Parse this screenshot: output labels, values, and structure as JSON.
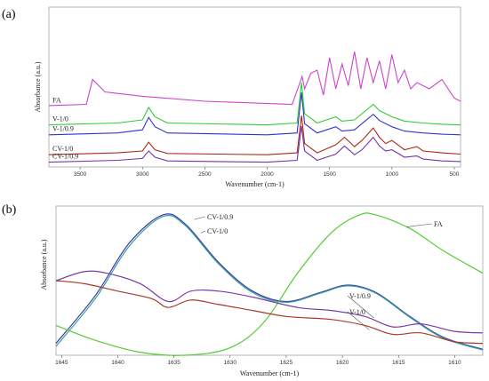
{
  "colors": {
    "FA": "#cc44cc",
    "V-1/0": "#33cc33",
    "V-1/0.9": "#3333cc",
    "CV-1/0": "#aa2a1a",
    "CV-1/0.9": "#7733aa",
    "b_CV-1/0.9": "#3a3aaa",
    "b_CV-1/0": "#3aa0a0",
    "b_FA": "#55cc33",
    "b_V-1/0.9": "#7a3aaa",
    "b_V-1/0": "#aa3a2a"
  },
  "chart_data": [
    {
      "panel": "(a)",
      "type": "line",
      "xlabel": "Wavenumber (cm-1)",
      "ylabel": "Absorbance (a.u.)",
      "xlim": [
        3750,
        450
      ],
      "xticks": [
        3500,
        3000,
        2500,
        2000,
        1500,
        1000,
        500
      ],
      "series": [
        {
          "name": "FA",
          "offset": 0.9,
          "points": [
            [
              3750,
              0.03
            ],
            [
              3450,
              0.05
            ],
            [
              3400,
              0.45
            ],
            [
              3300,
              0.25
            ],
            [
              3000,
              0.18
            ],
            [
              2500,
              0.1
            ],
            [
              1800,
              0.05
            ],
            [
              1720,
              0.5
            ],
            [
              1700,
              0.3
            ],
            [
              1650,
              0.55
            ],
            [
              1600,
              0.6
            ],
            [
              1550,
              0.2
            ],
            [
              1500,
              0.8
            ],
            [
              1450,
              0.3
            ],
            [
              1400,
              0.7
            ],
            [
              1350,
              0.35
            ],
            [
              1300,
              0.9
            ],
            [
              1250,
              0.3
            ],
            [
              1200,
              0.8
            ],
            [
              1150,
              0.4
            ],
            [
              1100,
              0.75
            ],
            [
              1050,
              0.3
            ],
            [
              1000,
              0.85
            ],
            [
              950,
              0.4
            ],
            [
              900,
              0.6
            ],
            [
              850,
              0.3
            ],
            [
              800,
              0.4
            ],
            [
              700,
              0.3
            ],
            [
              600,
              0.45
            ],
            [
              500,
              0.15
            ],
            [
              450,
              0.1
            ]
          ]
        },
        {
          "name": "V-1/0",
          "offset": 0.6,
          "points": [
            [
              3750,
              0.02
            ],
            [
              3200,
              0.05
            ],
            [
              3000,
              0.1
            ],
            [
              2950,
              0.3
            ],
            [
              2900,
              0.15
            ],
            [
              2800,
              0.05
            ],
            [
              2000,
              0.02
            ],
            [
              1760,
              0.05
            ],
            [
              1725,
              0.7
            ],
            [
              1700,
              0.2
            ],
            [
              1600,
              0.05
            ],
            [
              1450,
              0.15
            ],
            [
              1400,
              0.08
            ],
            [
              1300,
              0.1
            ],
            [
              1240,
              0.2
            ],
            [
              1150,
              0.35
            ],
            [
              1100,
              0.25
            ],
            [
              1050,
              0.2
            ],
            [
              1000,
              0.15
            ],
            [
              900,
              0.08
            ],
            [
              750,
              0.05
            ],
            [
              600,
              0.03
            ],
            [
              450,
              0.02
            ]
          ]
        },
        {
          "name": "V-1/0.9",
          "offset": 0.44,
          "points": [
            [
              3750,
              0.02
            ],
            [
              3200,
              0.05
            ],
            [
              3000,
              0.1
            ],
            [
              2950,
              0.3
            ],
            [
              2900,
              0.15
            ],
            [
              2800,
              0.05
            ],
            [
              2000,
              0.02
            ],
            [
              1760,
              0.05
            ],
            [
              1725,
              0.7
            ],
            [
              1700,
              0.2
            ],
            [
              1600,
              0.05
            ],
            [
              1450,
              0.15
            ],
            [
              1400,
              0.08
            ],
            [
              1300,
              0.1
            ],
            [
              1240,
              0.2
            ],
            [
              1150,
              0.35
            ],
            [
              1100,
              0.25
            ],
            [
              1050,
              0.2
            ],
            [
              1000,
              0.15
            ],
            [
              900,
              0.08
            ],
            [
              750,
              0.05
            ],
            [
              600,
              0.03
            ],
            [
              450,
              0.02
            ]
          ]
        },
        {
          "name": "CV-1/0",
          "offset": 0.12,
          "points": [
            [
              3750,
              0.02
            ],
            [
              3200,
              0.05
            ],
            [
              3000,
              0.08
            ],
            [
              2950,
              0.22
            ],
            [
              2900,
              0.1
            ],
            [
              2800,
              0.04
            ],
            [
              2000,
              0.02
            ],
            [
              1760,
              0.05
            ],
            [
              1725,
              0.65
            ],
            [
              1700,
              0.2
            ],
            [
              1600,
              0.05
            ],
            [
              1450,
              0.18
            ],
            [
              1380,
              0.3
            ],
            [
              1300,
              0.15
            ],
            [
              1240,
              0.25
            ],
            [
              1150,
              0.45
            ],
            [
              1100,
              0.3
            ],
            [
              1050,
              0.2
            ],
            [
              1000,
              0.25
            ],
            [
              900,
              0.1
            ],
            [
              800,
              0.15
            ],
            [
              750,
              0.08
            ],
            [
              600,
              0.05
            ],
            [
              450,
              0.03
            ]
          ]
        },
        {
          "name": "CV-1/0.9",
          "offset": 0.0,
          "points": [
            [
              3750,
              0.02
            ],
            [
              3200,
              0.05
            ],
            [
              3000,
              0.08
            ],
            [
              2950,
              0.2
            ],
            [
              2900,
              0.1
            ],
            [
              2800,
              0.04
            ],
            [
              2000,
              0.02
            ],
            [
              1760,
              0.05
            ],
            [
              1725,
              0.6
            ],
            [
              1700,
              0.2
            ],
            [
              1600,
              0.05
            ],
            [
              1450,
              0.15
            ],
            [
              1380,
              0.28
            ],
            [
              1300,
              0.14
            ],
            [
              1240,
              0.22
            ],
            [
              1150,
              0.42
            ],
            [
              1100,
              0.28
            ],
            [
              1050,
              0.2
            ],
            [
              1000,
              0.22
            ],
            [
              900,
              0.1
            ],
            [
              800,
              0.12
            ],
            [
              750,
              0.07
            ],
            [
              600,
              0.04
            ],
            [
              450,
              0.03
            ]
          ]
        }
      ]
    },
    {
      "panel": "(b)",
      "type": "line",
      "xlabel": "Wavenumber (cm-1)",
      "ylabel": "Absorbance (a.u.)",
      "xlim": [
        1645.5,
        1607.5
      ],
      "xticks": [
        1645,
        1640,
        1635,
        1630,
        1625,
        1620,
        1615,
        1610
      ],
      "series": [
        {
          "name": "CV-1/0.9",
          "key": "b_CV-1/0.9",
          "points": [
            [
              1645.5,
              0.08
            ],
            [
              1642,
              0.4
            ],
            [
              1639,
              0.75
            ],
            [
              1636,
              0.94
            ],
            [
              1634,
              0.88
            ],
            [
              1631,
              0.62
            ],
            [
              1628,
              0.43
            ],
            [
              1625,
              0.36
            ],
            [
              1622,
              0.42
            ],
            [
              1619.5,
              0.47
            ],
            [
              1617,
              0.42
            ],
            [
              1614,
              0.26
            ],
            [
              1611,
              0.12
            ],
            [
              1607.5,
              0.04
            ]
          ]
        },
        {
          "name": "CV-1/0",
          "key": "b_CV-1/0",
          "points": [
            [
              1645.5,
              0.06
            ],
            [
              1642,
              0.38
            ],
            [
              1639,
              0.73
            ],
            [
              1636,
              0.93
            ],
            [
              1634,
              0.87
            ],
            [
              1631,
              0.61
            ],
            [
              1628,
              0.42
            ],
            [
              1625,
              0.355
            ],
            [
              1622,
              0.415
            ],
            [
              1619.5,
              0.465
            ],
            [
              1617,
              0.415
            ],
            [
              1614,
              0.255
            ],
            [
              1611,
              0.115
            ],
            [
              1607.5,
              0.035
            ]
          ]
        },
        {
          "name": "FA",
          "key": "b_FA",
          "points": [
            [
              1645.5,
              0.2
            ],
            [
              1642,
              0.1
            ],
            [
              1638,
              0.02
            ],
            [
              1634,
              0.0
            ],
            [
              1630,
              0.05
            ],
            [
              1627,
              0.22
            ],
            [
              1624,
              0.55
            ],
            [
              1621,
              0.82
            ],
            [
              1618.5,
              0.94
            ],
            [
              1617,
              0.94
            ],
            [
              1614,
              0.85
            ],
            [
              1611,
              0.7
            ],
            [
              1607.5,
              0.55
            ]
          ]
        },
        {
          "name": "V-1/0.9",
          "key": "b_V-1/0.9",
          "points": [
            [
              1645.5,
              0.5
            ],
            [
              1643,
              0.56
            ],
            [
              1641,
              0.55
            ],
            [
              1638,
              0.48
            ],
            [
              1635.5,
              0.36
            ],
            [
              1633.5,
              0.43
            ],
            [
              1631,
              0.43
            ],
            [
              1628,
              0.39
            ],
            [
              1624,
              0.32
            ],
            [
              1621,
              0.3
            ],
            [
              1618,
              0.26
            ],
            [
              1615.5,
              0.19
            ],
            [
              1613,
              0.21
            ],
            [
              1610,
              0.16
            ],
            [
              1607.5,
              0.15
            ]
          ]
        },
        {
          "name": "V-1/0",
          "key": "b_V-1/0",
          "points": [
            [
              1645.5,
              0.5
            ],
            [
              1643,
              0.48
            ],
            [
              1640,
              0.43
            ],
            [
              1637,
              0.38
            ],
            [
              1635.5,
              0.32
            ],
            [
              1633.5,
              0.37
            ],
            [
              1631,
              0.34
            ],
            [
              1628,
              0.3
            ],
            [
              1625,
              0.26
            ],
            [
              1621,
              0.24
            ],
            [
              1618,
              0.2
            ],
            [
              1615.5,
              0.14
            ],
            [
              1613,
              0.15
            ],
            [
              1610,
              0.09
            ],
            [
              1607.5,
              0.08
            ]
          ]
        }
      ]
    }
  ],
  "panel_a_label": "(a)",
  "panel_b_label": "(b)"
}
